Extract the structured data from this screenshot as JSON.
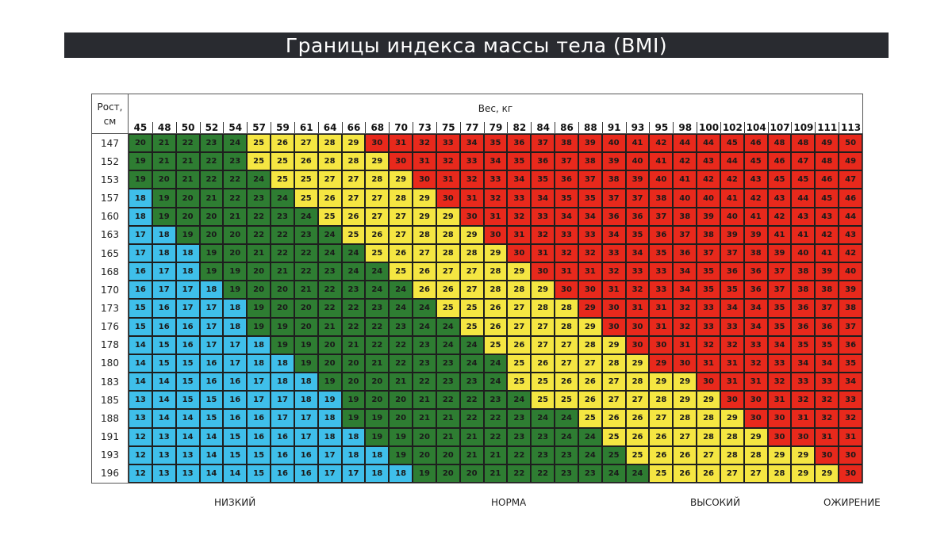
{
  "title": "Границы индекса массы тела (BMI)",
  "header": {
    "row_label": "Рост,\nсм",
    "col_label": "Вес, кг"
  },
  "legend": [
    {
      "label": "НИЗКИЙ",
      "color": "#3fbfea"
    },
    {
      "label": "НОРМА",
      "color": "#2e7d32"
    },
    {
      "label": "ВЫСОКИЙ",
      "color": "#f5e642"
    },
    {
      "label": "ОЖИРЕНИЕ",
      "color": "#e8291c"
    }
  ],
  "chart_data": {
    "type": "heatmap",
    "title": "Границы индекса массы тела (BMI)",
    "xlabel": "Вес, кг",
    "ylabel": "Рост, см",
    "x": [
      45,
      48,
      50,
      52,
      54,
      57,
      59,
      61,
      64,
      66,
      68,
      70,
      73,
      75,
      77,
      79,
      82,
      84,
      86,
      88,
      91,
      93,
      95,
      98,
      100,
      102,
      104,
      107,
      109,
      111,
      113
    ],
    "y": [
      147,
      152,
      153,
      157,
      160,
      163,
      165,
      168,
      170,
      173,
      176,
      178,
      180,
      183,
      185,
      188,
      191,
      193,
      196
    ],
    "values": [
      [
        20,
        21,
        22,
        23,
        24,
        25,
        26,
        27,
        28,
        29,
        30,
        31,
        32,
        33,
        34,
        35,
        36,
        37,
        38,
        39,
        40,
        41,
        42,
        44,
        44,
        45,
        46,
        48,
        48,
        49,
        50
      ],
      [
        19,
        21,
        21,
        22,
        23,
        25,
        25,
        26,
        28,
        28,
        29,
        30,
        31,
        32,
        33,
        34,
        35,
        36,
        37,
        38,
        39,
        40,
        41,
        42,
        43,
        44,
        45,
        46,
        47,
        48,
        49
      ],
      [
        19,
        20,
        21,
        22,
        22,
        24,
        25,
        25,
        27,
        27,
        28,
        29,
        30,
        31,
        32,
        33,
        34,
        35,
        36,
        37,
        38,
        39,
        40,
        41,
        42,
        42,
        43,
        45,
        45,
        46,
        47
      ],
      [
        18,
        19,
        20,
        21,
        22,
        23,
        24,
        25,
        26,
        27,
        27,
        28,
        29,
        30,
        31,
        32,
        33,
        34,
        35,
        35,
        37,
        37,
        38,
        40,
        40,
        41,
        42,
        43,
        44,
        45,
        46
      ],
      [
        18,
        19,
        20,
        20,
        21,
        22,
        23,
        24,
        25,
        26,
        27,
        27,
        29,
        29,
        30,
        31,
        32,
        33,
        34,
        34,
        36,
        36,
        37,
        38,
        39,
        40,
        41,
        42,
        43,
        43,
        44
      ],
      [
        17,
        18,
        19,
        20,
        20,
        22,
        22,
        23,
        24,
        25,
        26,
        27,
        28,
        28,
        29,
        30,
        31,
        32,
        33,
        33,
        34,
        35,
        36,
        37,
        38,
        39,
        39,
        41,
        41,
        42,
        43
      ],
      [
        17,
        18,
        18,
        19,
        20,
        21,
        22,
        22,
        24,
        24,
        25,
        26,
        27,
        28,
        28,
        29,
        30,
        31,
        32,
        32,
        33,
        34,
        35,
        36,
        37,
        37,
        38,
        39,
        40,
        41,
        42
      ],
      [
        16,
        17,
        18,
        19,
        19,
        20,
        21,
        22,
        23,
        24,
        24,
        25,
        26,
        27,
        27,
        28,
        29,
        30,
        31,
        31,
        32,
        33,
        33,
        34,
        35,
        36,
        36,
        37,
        38,
        39,
        40
      ],
      [
        16,
        17,
        17,
        18,
        19,
        20,
        20,
        21,
        22,
        23,
        24,
        24,
        26,
        26,
        27,
        28,
        28,
        29,
        30,
        30,
        31,
        32,
        33,
        34,
        35,
        35,
        36,
        37,
        38,
        38,
        39
      ],
      [
        15,
        16,
        17,
        17,
        18,
        19,
        20,
        20,
        22,
        22,
        23,
        24,
        24,
        25,
        25,
        26,
        27,
        28,
        28,
        29,
        30,
        31,
        31,
        32,
        33,
        34,
        34,
        35,
        36,
        37,
        38
      ],
      [
        15,
        16,
        16,
        17,
        18,
        19,
        19,
        20,
        21,
        22,
        22,
        23,
        24,
        24,
        25,
        26,
        27,
        27,
        28,
        29,
        30,
        30,
        31,
        32,
        33,
        33,
        34,
        35,
        36,
        36,
        37
      ],
      [
        14,
        15,
        16,
        17,
        17,
        18,
        19,
        19,
        20,
        21,
        22,
        22,
        23,
        24,
        24,
        25,
        26,
        27,
        27,
        28,
        29,
        30,
        30,
        31,
        32,
        32,
        33,
        34,
        35,
        35,
        36
      ],
      [
        14,
        15,
        15,
        16,
        17,
        18,
        18,
        19,
        20,
        20,
        21,
        22,
        23,
        23,
        24,
        24,
        25,
        26,
        27,
        27,
        28,
        29,
        29,
        30,
        31,
        31,
        32,
        33,
        34,
        34,
        35
      ],
      [
        14,
        14,
        15,
        16,
        16,
        17,
        18,
        18,
        19,
        20,
        20,
        21,
        22,
        23,
        23,
        24,
        25,
        25,
        26,
        26,
        27,
        28,
        29,
        29,
        30,
        31,
        31,
        32,
        33,
        33,
        34
      ],
      [
        13,
        14,
        15,
        15,
        16,
        17,
        17,
        18,
        19,
        19,
        20,
        20,
        21,
        22,
        22,
        23,
        24,
        25,
        25,
        26,
        27,
        27,
        28,
        29,
        29,
        30,
        30,
        31,
        32,
        32,
        33
      ],
      [
        13,
        14,
        14,
        15,
        16,
        16,
        17,
        17,
        18,
        19,
        19,
        20,
        21,
        21,
        22,
        22,
        23,
        24,
        24,
        25,
        26,
        26,
        27,
        28,
        28,
        29,
        30,
        30,
        31,
        32,
        32
      ],
      [
        12,
        13,
        14,
        14,
        15,
        16,
        16,
        17,
        18,
        18,
        19,
        19,
        20,
        21,
        21,
        22,
        23,
        23,
        24,
        24,
        25,
        26,
        26,
        27,
        28,
        28,
        29,
        30,
        30,
        31,
        31
      ],
      [
        12,
        13,
        13,
        14,
        15,
        15,
        16,
        16,
        17,
        18,
        18,
        19,
        20,
        20,
        21,
        21,
        22,
        23,
        23,
        24,
        25,
        25,
        26,
        26,
        27,
        28,
        28,
        29,
        29,
        30,
        30
      ],
      [
        12,
        13,
        13,
        14,
        14,
        15,
        16,
        16,
        17,
        17,
        18,
        18,
        19,
        20,
        20,
        21,
        22,
        22,
        23,
        23,
        24,
        24,
        25,
        26,
        26,
        27,
        27,
        28,
        29,
        29,
        30
      ]
    ],
    "categories": [
      [
        0,
        0,
        0,
        0,
        0,
        1,
        1,
        1,
        1,
        1,
        2,
        2,
        2,
        2,
        2,
        2,
        2,
        2,
        2,
        2,
        2,
        2,
        2,
        2,
        2,
        2,
        2,
        2,
        2,
        2,
        2
      ],
      [
        0,
        0,
        0,
        0,
        0,
        1,
        1,
        1,
        1,
        1,
        1,
        2,
        2,
        2,
        2,
        2,
        2,
        2,
        2,
        2,
        2,
        2,
        2,
        2,
        2,
        2,
        2,
        2,
        2,
        2,
        2
      ],
      [
        0,
        0,
        0,
        0,
        0,
        0,
        1,
        1,
        1,
        1,
        1,
        1,
        2,
        2,
        2,
        2,
        2,
        2,
        2,
        2,
        2,
        2,
        2,
        2,
        2,
        2,
        2,
        2,
        2,
        2,
        2
      ],
      [
        -1,
        0,
        0,
        0,
        0,
        0,
        0,
        1,
        1,
        1,
        1,
        1,
        1,
        2,
        2,
        2,
        2,
        2,
        2,
        2,
        2,
        2,
        2,
        2,
        2,
        2,
        2,
        2,
        2,
        2,
        2
      ],
      [
        -1,
        0,
        0,
        0,
        0,
        0,
        0,
        0,
        1,
        1,
        1,
        1,
        1,
        1,
        2,
        2,
        2,
        2,
        2,
        2,
        2,
        2,
        2,
        2,
        2,
        2,
        2,
        2,
        2,
        2,
        2
      ],
      [
        -1,
        -1,
        0,
        0,
        0,
        0,
        0,
        0,
        0,
        1,
        1,
        1,
        1,
        1,
        1,
        2,
        2,
        2,
        2,
        2,
        2,
        2,
        2,
        2,
        2,
        2,
        2,
        2,
        2,
        2,
        2
      ],
      [
        -1,
        -1,
        -1,
        0,
        0,
        0,
        0,
        0,
        0,
        0,
        1,
        1,
        1,
        1,
        1,
        1,
        2,
        2,
        2,
        2,
        2,
        2,
        2,
        2,
        2,
        2,
        2,
        2,
        2,
        2,
        2
      ],
      [
        -1,
        -1,
        -1,
        0,
        0,
        0,
        0,
        0,
        0,
        0,
        0,
        1,
        1,
        1,
        1,
        1,
        1,
        2,
        2,
        2,
        2,
        2,
        2,
        2,
        2,
        2,
        2,
        2,
        2,
        2,
        2
      ],
      [
        -1,
        -1,
        -1,
        -1,
        0,
        0,
        0,
        0,
        0,
        0,
        0,
        0,
        1,
        1,
        1,
        1,
        1,
        1,
        2,
        2,
        2,
        2,
        2,
        2,
        2,
        2,
        2,
        2,
        2,
        2,
        2
      ],
      [
        -1,
        -1,
        -1,
        -1,
        -1,
        0,
        0,
        0,
        0,
        0,
        0,
        0,
        0,
        1,
        1,
        1,
        1,
        1,
        1,
        2,
        2,
        2,
        2,
        2,
        2,
        2,
        2,
        2,
        2,
        2,
        2
      ],
      [
        -1,
        -1,
        -1,
        -1,
        -1,
        0,
        0,
        0,
        0,
        0,
        0,
        0,
        0,
        0,
        1,
        1,
        1,
        1,
        1,
        1,
        2,
        2,
        2,
        2,
        2,
        2,
        2,
        2,
        2,
        2,
        2
      ],
      [
        -1,
        -1,
        -1,
        -1,
        -1,
        -1,
        0,
        0,
        0,
        0,
        0,
        0,
        0,
        0,
        0,
        1,
        1,
        1,
        1,
        1,
        1,
        2,
        2,
        2,
        2,
        2,
        2,
        2,
        2,
        2,
        2
      ],
      [
        -1,
        -1,
        -1,
        -1,
        -1,
        -1,
        -1,
        0,
        0,
        0,
        0,
        0,
        0,
        0,
        0,
        0,
        1,
        1,
        1,
        1,
        1,
        1,
        2,
        2,
        2,
        2,
        2,
        2,
        2,
        2,
        2
      ],
      [
        -1,
        -1,
        -1,
        -1,
        -1,
        -1,
        -1,
        -1,
        0,
        0,
        0,
        0,
        0,
        0,
        0,
        0,
        1,
        1,
        1,
        1,
        1,
        1,
        1,
        1,
        2,
        2,
        2,
        2,
        2,
        2,
        2
      ],
      [
        -1,
        -1,
        -1,
        -1,
        -1,
        -1,
        -1,
        -1,
        -1,
        0,
        0,
        0,
        0,
        0,
        0,
        0,
        0,
        1,
        1,
        1,
        1,
        1,
        1,
        1,
        1,
        2,
        2,
        2,
        2,
        2,
        2
      ],
      [
        -1,
        -1,
        -1,
        -1,
        -1,
        -1,
        -1,
        -1,
        -1,
        0,
        0,
        0,
        0,
        0,
        0,
        0,
        0,
        0,
        0,
        1,
        1,
        1,
        1,
        1,
        1,
        1,
        2,
        2,
        2,
        2,
        2
      ],
      [
        -1,
        -1,
        -1,
        -1,
        -1,
        -1,
        -1,
        -1,
        -1,
        -1,
        0,
        0,
        0,
        0,
        0,
        0,
        0,
        0,
        0,
        0,
        1,
        1,
        1,
        1,
        1,
        1,
        1,
        2,
        2,
        2,
        2
      ],
      [
        -1,
        -1,
        -1,
        -1,
        -1,
        -1,
        -1,
        -1,
        -1,
        -1,
        -1,
        0,
        0,
        0,
        0,
        0,
        0,
        0,
        0,
        0,
        0,
        1,
        1,
        1,
        1,
        1,
        1,
        1,
        1,
        2,
        2
      ],
      [
        -1,
        -1,
        -1,
        -1,
        -1,
        -1,
        -1,
        -1,
        -1,
        -1,
        -1,
        -1,
        0,
        0,
        0,
        0,
        0,
        0,
        0,
        0,
        0,
        0,
        1,
        1,
        1,
        1,
        1,
        1,
        1,
        1,
        2
      ]
    ],
    "category_colors": {
      "-1": "#3fbfea",
      "0": "#2e7d32",
      "1": "#f5e642",
      "2": "#e8291c"
    }
  }
}
